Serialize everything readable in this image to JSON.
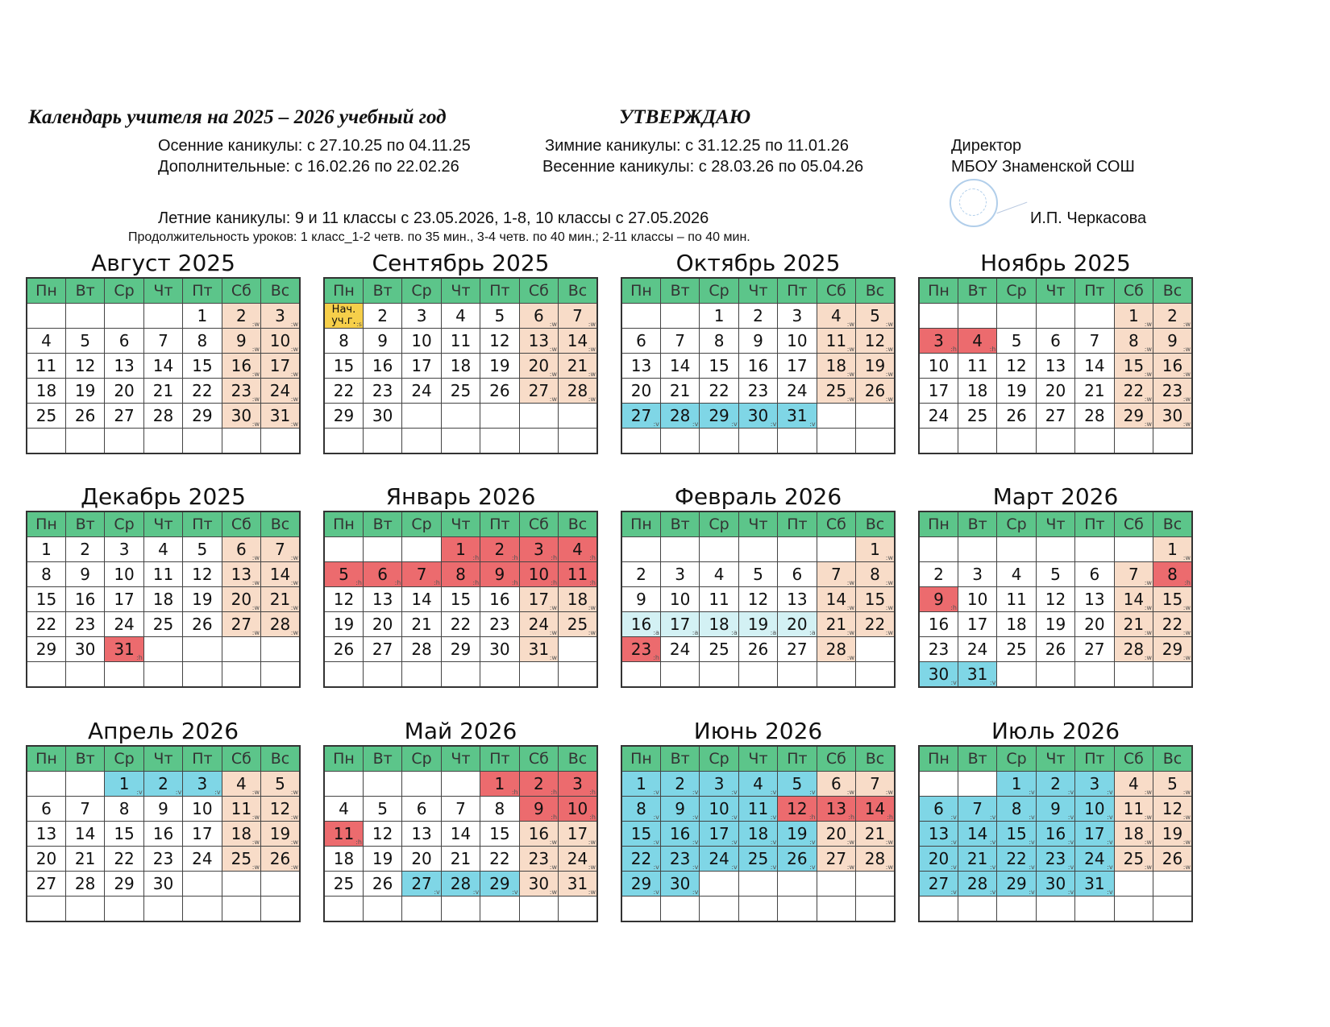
{
  "header": {
    "title": "Календарь учителя на 2025 – 2026 учебный год",
    "approve": "УТВЕРЖДАЮ",
    "autumn": "Осенние каникулы: с 27.10.25 по 04.11.25",
    "winter": "Зимние каникулы: с 31.12.25 по 11.01.26",
    "additional": "Дополнительные: с 16.02.26 по 22.02.26",
    "spring": "Весенние каникулы: с 28.03.26 по 05.04.26",
    "director": "Директор",
    "school": "МБОУ Знаменской СОШ",
    "summer": "Летние каникулы: 9 и 11 классы с 23.05.2026, 1-8, 10 классы с 27.05.2026",
    "signatory": "И.П. Черкасова",
    "lessons": "Продолжительность уроков: 1 класс_1-2 четв. по 35 мин., 3-4 четв. по 40 мин.; 2-11 классы – по 40 мин."
  },
  "weekdays": [
    "Пн",
    "Вт",
    "Ср",
    "Чт",
    "Пт",
    "Сб",
    "Вс"
  ],
  "colors": {
    "header": "#5cc58a",
    "weekend": "#f8dcc8",
    "holiday": "#ec6b6e",
    "vacation": "#7fd6e6",
    "additional": "#d3f1f4",
    "start": "#f6cf4a"
  },
  "legend_codes": {
    "w": "weekend",
    "h": "holiday",
    "v": "vacation",
    "a": "additional vacation",
    "s": "start of school year"
  },
  "months": [
    {
      "name": "Август 2025",
      "weeks": [
        [
          "",
          "",
          "",
          "",
          "1",
          "2:w",
          "3:w"
        ],
        [
          "4",
          "5",
          "6",
          "7",
          "8",
          "9:w",
          "10:w"
        ],
        [
          "11",
          "12",
          "13",
          "14",
          "15",
          "16:w",
          "17:w"
        ],
        [
          "18",
          "19",
          "20",
          "21",
          "22",
          "23:w",
          "24:w"
        ],
        [
          "25",
          "26",
          "27",
          "28",
          "29",
          "30:w",
          "31:w"
        ],
        [
          "",
          "",
          "",
          "",
          "",
          "",
          ""
        ]
      ]
    },
    {
      "name": "Сентябрь 2025",
      "weeks": [
        [
          "Нач. уч.г.:s",
          "2",
          "3",
          "4",
          "5",
          "6:w",
          "7:w"
        ],
        [
          "8",
          "9",
          "10",
          "11",
          "12",
          "13:w",
          "14:w"
        ],
        [
          "15",
          "16",
          "17",
          "18",
          "19",
          "20:w",
          "21:w"
        ],
        [
          "22",
          "23",
          "24",
          "25",
          "26",
          "27:w",
          "28:w"
        ],
        [
          "29",
          "30",
          "",
          "",
          "",
          "",
          ""
        ],
        [
          "",
          "",
          "",
          "",
          "",
          "",
          ""
        ]
      ]
    },
    {
      "name": "Октябрь 2025",
      "weeks": [
        [
          "",
          "",
          "1",
          "2",
          "3",
          "4:w",
          "5:w"
        ],
        [
          "6",
          "7",
          "8",
          "9",
          "10",
          "11:w",
          "12:w"
        ],
        [
          "13",
          "14",
          "15",
          "16",
          "17",
          "18:w",
          "19:w"
        ],
        [
          "20",
          "21",
          "22",
          "23",
          "24",
          "25:w",
          "26:w"
        ],
        [
          "27:v",
          "28:v",
          "29:v",
          "30:v",
          "31:v",
          "",
          ""
        ],
        [
          "",
          "",
          "",
          "",
          "",
          "",
          ""
        ]
      ]
    },
    {
      "name": "Ноябрь 2025",
      "weeks": [
        [
          "",
          "",
          "",
          "",
          "",
          "1:w",
          "2:w"
        ],
        [
          "3:h",
          "4:h",
          "5",
          "6",
          "7",
          "8:w",
          "9:w"
        ],
        [
          "10",
          "11",
          "12",
          "13",
          "14",
          "15:w",
          "16:w"
        ],
        [
          "17",
          "18",
          "19",
          "20",
          "21",
          "22:w",
          "23:w"
        ],
        [
          "24",
          "25",
          "26",
          "27",
          "28",
          "29:w",
          "30:w"
        ],
        [
          "",
          "",
          "",
          "",
          "",
          "",
          ""
        ]
      ]
    },
    {
      "name": "Декабрь 2025",
      "weeks": [
        [
          "1",
          "2",
          "3",
          "4",
          "5",
          "6:w",
          "7:w"
        ],
        [
          "8",
          "9",
          "10",
          "11",
          "12",
          "13:w",
          "14:w"
        ],
        [
          "15",
          "16",
          "17",
          "18",
          "19",
          "20:w",
          "21:w"
        ],
        [
          "22",
          "23",
          "24",
          "25",
          "26",
          "27:w",
          "28:w"
        ],
        [
          "29",
          "30",
          "31:h",
          "",
          "",
          "",
          ""
        ],
        [
          "",
          "",
          "",
          "",
          "",
          "",
          ""
        ]
      ]
    },
    {
      "name": "Январь 2026",
      "weeks": [
        [
          "",
          "",
          "",
          "1:h",
          "2:h",
          "3:h",
          "4:h"
        ],
        [
          "5:h",
          "6:h",
          "7:h",
          "8:h",
          "9:h",
          "10:h",
          "11:h"
        ],
        [
          "12",
          "13",
          "14",
          "15",
          "16",
          "17:w",
          "18:w"
        ],
        [
          "19",
          "20",
          "21",
          "22",
          "23",
          "24:w",
          "25:w"
        ],
        [
          "26",
          "27",
          "28",
          "29",
          "30",
          "31:w",
          ""
        ],
        [
          "",
          "",
          "",
          "",
          "",
          "",
          ""
        ]
      ]
    },
    {
      "name": "Февраль 2026",
      "weeks": [
        [
          "",
          "",
          "",
          "",
          "",
          "",
          "1:w"
        ],
        [
          "2",
          "3",
          "4",
          "5",
          "6",
          "7:w",
          "8:w"
        ],
        [
          "9",
          "10",
          "11",
          "12",
          "13",
          "14:w",
          "15:w"
        ],
        [
          "16:a",
          "17:a",
          "18:a",
          "19:a",
          "20:a",
          "21:w",
          "22:w"
        ],
        [
          "23:h",
          "24",
          "25",
          "26",
          "27",
          "28:w",
          ""
        ],
        [
          "",
          "",
          "",
          "",
          "",
          "",
          ""
        ]
      ]
    },
    {
      "name": "Март 2026",
      "weeks": [
        [
          "",
          "",
          "",
          "",
          "",
          "",
          "1:w"
        ],
        [
          "2",
          "3",
          "4",
          "5",
          "6",
          "7:w",
          "8:h"
        ],
        [
          "9:h",
          "10",
          "11",
          "12",
          "13",
          "14:w",
          "15:w"
        ],
        [
          "16",
          "17",
          "18",
          "19",
          "20",
          "21:w",
          "22:w"
        ],
        [
          "23",
          "24",
          "25",
          "26",
          "27",
          "28:w",
          "29:w"
        ],
        [
          "30:v",
          "31:v",
          "",
          "",
          "",
          "",
          ""
        ]
      ]
    },
    {
      "name": "Апрель 2026",
      "weeks": [
        [
          "",
          "",
          "1:v",
          "2:v",
          "3:v",
          "4:w",
          "5:w"
        ],
        [
          "6",
          "7",
          "8",
          "9",
          "10",
          "11:w",
          "12:w"
        ],
        [
          "13",
          "14",
          "15",
          "16",
          "17",
          "18:w",
          "19:w"
        ],
        [
          "20",
          "21",
          "22",
          "23",
          "24",
          "25:w",
          "26:w"
        ],
        [
          "27",
          "28",
          "29",
          "30",
          "",
          "",
          ""
        ],
        [
          "",
          "",
          "",
          "",
          "",
          "",
          ""
        ]
      ]
    },
    {
      "name": "Май 2026",
      "weeks": [
        [
          "",
          "",
          "",
          "",
          "1:h",
          "2:h",
          "3:h"
        ],
        [
          "4",
          "5",
          "6",
          "7",
          "8",
          "9:h",
          "10:h"
        ],
        [
          "11:h",
          "12",
          "13",
          "14",
          "15",
          "16:w",
          "17:w"
        ],
        [
          "18",
          "19",
          "20",
          "21",
          "22",
          "23:w",
          "24:w"
        ],
        [
          "25",
          "26",
          "27:v",
          "28:v",
          "29:v",
          "30:w",
          "31:w"
        ],
        [
          "",
          "",
          "",
          "",
          "",
          "",
          ""
        ]
      ]
    },
    {
      "name": "Июнь 2026",
      "weeks": [
        [
          "1:v",
          "2:v",
          "3:v",
          "4:v",
          "5:v",
          "6:w",
          "7:w"
        ],
        [
          "8:v",
          "9:v",
          "10:v",
          "11:v",
          "12:h",
          "13:h",
          "14:h"
        ],
        [
          "15:v",
          "16:v",
          "17:v",
          "18:v",
          "19:v",
          "20:w",
          "21:w"
        ],
        [
          "22:v",
          "23:v",
          "24:v",
          "25:v",
          "26:v",
          "27:w",
          "28:w"
        ],
        [
          "29:v",
          "30:v",
          "",
          "",
          "",
          "",
          ""
        ],
        [
          "",
          "",
          "",
          "",
          "",
          "",
          ""
        ]
      ]
    },
    {
      "name": "Июль 2026",
      "weeks": [
        [
          "",
          "",
          "1:v",
          "2:v",
          "3:v",
          "4:w",
          "5:w"
        ],
        [
          "6:v",
          "7:v",
          "8:v",
          "9:v",
          "10:v",
          "11:w",
          "12:w"
        ],
        [
          "13:v",
          "14:v",
          "15:v",
          "16:v",
          "17:v",
          "18:w",
          "19:w"
        ],
        [
          "20:v",
          "21:v",
          "22:v",
          "23:v",
          "24:v",
          "25:w",
          "26:w"
        ],
        [
          "27:v",
          "28:v",
          "29:v",
          "30:v",
          "31:v",
          "",
          ""
        ],
        [
          "",
          "",
          "",
          "",
          "",
          "",
          ""
        ]
      ]
    }
  ]
}
